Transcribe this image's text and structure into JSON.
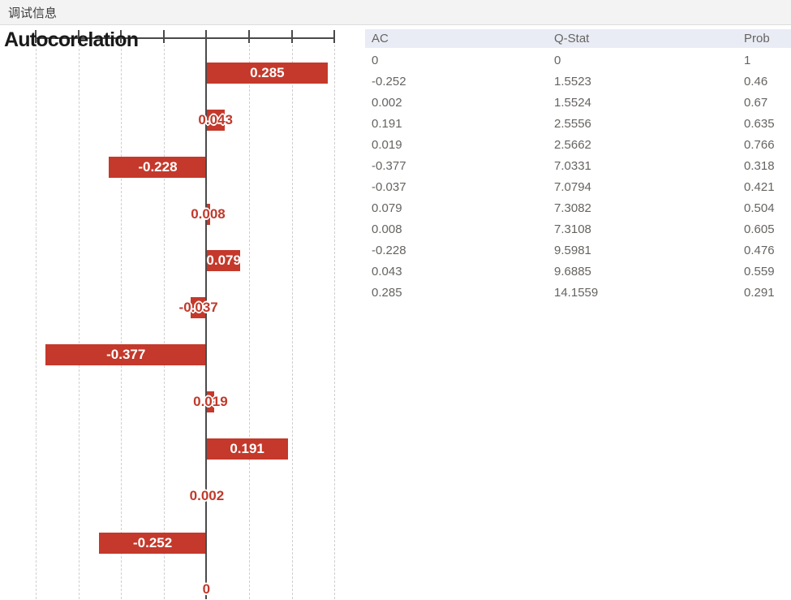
{
  "window": {
    "title": "调试信息"
  },
  "chart_data": {
    "type": "bar",
    "orientation": "horizontal",
    "title": "Autocorelation",
    "values_top_to_bottom": [
      0.285,
      0.043,
      -0.228,
      0.008,
      0.079,
      -0.037,
      -0.377,
      0.019,
      0.191,
      0.002,
      -0.252,
      0
    ],
    "bar_labels": [
      "0.285",
      "0.043",
      "-0.228",
      "0.008",
      "0.079",
      "-0.037",
      "-0.377",
      "0.019",
      "0.191",
      "0.002",
      "-0.252",
      "0"
    ],
    "xlim": [
      -0.45,
      0.35
    ],
    "gridline_values": [
      -0.4,
      -0.3,
      -0.2,
      -0.1,
      0,
      0.1,
      0.2,
      0.3
    ],
    "grid": "vertical-dashed",
    "legend": "none",
    "bar_color": "#c4392b"
  },
  "table": {
    "columns": [
      "AC",
      "Q-Stat",
      "Prob"
    ],
    "rows": [
      [
        "0",
        "0",
        "1"
      ],
      [
        "-0.252",
        "1.5523",
        "0.46"
      ],
      [
        "0.002",
        "1.5524",
        "0.67"
      ],
      [
        "0.191",
        "2.5556",
        "0.635"
      ],
      [
        "0.019",
        "2.5662",
        "0.766"
      ],
      [
        "-0.377",
        "7.0331",
        "0.318"
      ],
      [
        "-0.037",
        "7.0794",
        "0.421"
      ],
      [
        "0.079",
        "7.3082",
        "0.504"
      ],
      [
        "0.008",
        "7.3108",
        "0.605"
      ],
      [
        "-0.228",
        "9.5981",
        "0.476"
      ],
      [
        "0.043",
        "9.6885",
        "0.559"
      ],
      [
        "0.285",
        "14.1559",
        "0.291"
      ]
    ]
  },
  "colors": {
    "bar_red": "#c4392b",
    "label_red": "#c0392b",
    "axis": "#4a4a4a",
    "gridline": "#cfcfcf",
    "table_header_bg": "#e9ecf5",
    "table_text": "#666461",
    "titlebar_bg": "#f3f3f3",
    "titlebar_border": "#dcdcdc"
  }
}
